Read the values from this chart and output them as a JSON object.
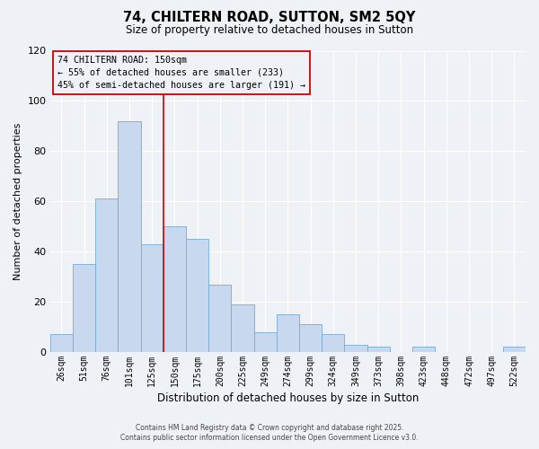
{
  "title": "74, CHILTERN ROAD, SUTTON, SM2 5QY",
  "subtitle": "Size of property relative to detached houses in Sutton",
  "xlabel": "Distribution of detached houses by size in Sutton",
  "ylabel": "Number of detached properties",
  "bar_color": "#c8d8ee",
  "bar_edge_color": "#7aaad0",
  "background_color": "#eef2f7",
  "grid_color": "#ffffff",
  "categories": [
    "26sqm",
    "51sqm",
    "76sqm",
    "101sqm",
    "125sqm",
    "150sqm",
    "175sqm",
    "200sqm",
    "225sqm",
    "249sqm",
    "274sqm",
    "299sqm",
    "324sqm",
    "349sqm",
    "373sqm",
    "398sqm",
    "423sqm",
    "448sqm",
    "472sqm",
    "497sqm",
    "522sqm"
  ],
  "values": [
    7,
    35,
    61,
    92,
    43,
    50,
    45,
    27,
    19,
    8,
    15,
    11,
    7,
    3,
    2,
    0,
    2,
    0,
    0,
    0,
    2
  ],
  "vline_color": "#cc0000",
  "annotation_title": "74 CHILTERN ROAD: 150sqm",
  "annotation_line1": "← 55% of detached houses are smaller (233)",
  "annotation_line2": "45% of semi-detached houses are larger (191) →",
  "annotation_box_color": "#cc0000",
  "ylim": [
    0,
    120
  ],
  "yticks": [
    0,
    20,
    40,
    60,
    80,
    100,
    120
  ],
  "footer1": "Contains HM Land Registry data © Crown copyright and database right 2025.",
  "footer2": "Contains public sector information licensed under the Open Government Licence v3.0."
}
